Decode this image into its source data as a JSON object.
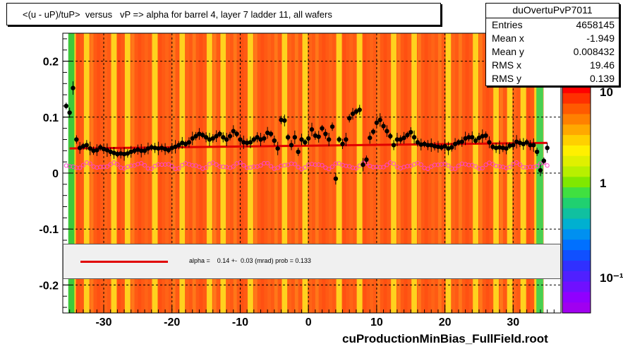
{
  "title": "<(u - uP)/tuP>  versus   vP => alpha for barrel 4, layer 7 ladder 11, all wafers",
  "stats": {
    "name": "duOvertuPvP7011",
    "rows": [
      {
        "label": "Entries",
        "value": "4658145"
      },
      {
        "label": "Mean x",
        "value": "-1.949"
      },
      {
        "label": "Mean y",
        "value": "0.008432"
      },
      {
        "label": "RMS x",
        "value": "19.46"
      },
      {
        "label": "RMS y",
        "value": "0.139"
      }
    ]
  },
  "fit_text": "alpha =    0.14 +-  0.03 (mrad) prob = 0.133",
  "footer": "cuProductionMinBias_FullField.root",
  "colors": {
    "fit_line": "#e00000",
    "profile_markers": "#000000",
    "secondary_markers": "#ff44cc",
    "heatmap_main": "#ff5a14",
    "heatmap_stripes": "#ffd21e"
  },
  "chart_data": {
    "type": "heatmap",
    "title": "<(u - uP)/tuP>  versus   vP => alpha for barrel 4, layer 7 ladder 11, all wafers",
    "xlim": [
      -36,
      37
    ],
    "ylim": [
      -0.25,
      0.25
    ],
    "x_ticks": [
      -30,
      -20,
      -10,
      0,
      10,
      20,
      30
    ],
    "x_tick_labels": [
      "-30",
      "-20",
      "-10",
      "0",
      "10",
      "20",
      "30"
    ],
    "y_ticks": [
      -0.2,
      -0.1,
      0,
      0.1,
      0.2
    ],
    "y_tick_labels": [
      "-0.2",
      "-0.1",
      "0",
      "0.1",
      "0.2"
    ],
    "z_scale": "log",
    "z_tick_labels": [
      "10",
      "1",
      "10⁻¹"
    ],
    "grid": true,
    "heat_x_range": [
      -35,
      34
    ],
    "stripe_positions": [
      -34.5,
      -32.5,
      -28.5,
      -26.5,
      -22.5,
      -18.5,
      -14.5,
      -12.5,
      -8.5,
      -3.5,
      -0.5,
      4.5,
      7.5,
      12.5,
      15.5,
      20.5,
      24.5,
      27.5,
      29.5,
      31.5,
      33.5
    ],
    "fit": {
      "x": [
        -35,
        35
      ],
      "y": [
        0.044,
        0.054
      ]
    },
    "profile": {
      "name": "profile",
      "points": [
        [
          -35.5,
          0.12
        ],
        [
          -35.0,
          0.108
        ],
        [
          -34.5,
          0.152
        ],
        [
          -34.0,
          0.06
        ],
        [
          -33.5,
          0.045
        ],
        [
          -33.0,
          0.048
        ],
        [
          -32.5,
          0.05
        ],
        [
          -32.0,
          0.044
        ],
        [
          -31.5,
          0.04
        ],
        [
          -31.0,
          0.041
        ],
        [
          -30.5,
          0.046
        ],
        [
          -30.0,
          0.043
        ],
        [
          -29.5,
          0.041
        ],
        [
          -29.0,
          0.038
        ],
        [
          -28.5,
          0.036
        ],
        [
          -28.0,
          0.034
        ],
        [
          -27.5,
          0.035
        ],
        [
          -27.0,
          0.034
        ],
        [
          -26.5,
          0.035
        ],
        [
          -26.0,
          0.038
        ],
        [
          -25.5,
          0.04
        ],
        [
          -25.0,
          0.042
        ],
        [
          -24.5,
          0.04
        ],
        [
          -24.0,
          0.04
        ],
        [
          -23.5,
          0.044
        ],
        [
          -23.0,
          0.046
        ],
        [
          -22.5,
          0.045
        ],
        [
          -22.0,
          0.044
        ],
        [
          -21.5,
          0.045
        ],
        [
          -21.0,
          0.043
        ],
        [
          -20.5,
          0.041
        ],
        [
          -20.0,
          0.045
        ],
        [
          -19.5,
          0.047
        ],
        [
          -19.0,
          0.05
        ],
        [
          -18.5,
          0.054
        ],
        [
          -18.0,
          0.052
        ],
        [
          -17.5,
          0.055
        ],
        [
          -17.0,
          0.062
        ],
        [
          -16.5,
          0.066
        ],
        [
          -16.0,
          0.07
        ],
        [
          -15.5,
          0.068
        ],
        [
          -15.0,
          0.064
        ],
        [
          -14.5,
          0.06
        ],
        [
          -14.0,
          0.062
        ],
        [
          -13.5,
          0.066
        ],
        [
          -13.0,
          0.07
        ],
        [
          -12.5,
          0.064
        ],
        [
          -12.0,
          0.06
        ],
        [
          -11.5,
          0.066
        ],
        [
          -11.0,
          0.075
        ],
        [
          -10.5,
          0.07
        ],
        [
          -10.0,
          0.06
        ],
        [
          -9.5,
          0.055
        ],
        [
          -9.0,
          0.054
        ],
        [
          -8.5,
          0.055
        ],
        [
          -8.0,
          0.06
        ],
        [
          -7.5,
          0.064
        ],
        [
          -7.0,
          0.06
        ],
        [
          -6.5,
          0.062
        ],
        [
          -6.0,
          0.072
        ],
        [
          -5.5,
          0.07
        ],
        [
          -5.0,
          0.058
        ],
        [
          -4.5,
          0.044
        ],
        [
          -4.0,
          0.095
        ],
        [
          -3.5,
          0.094
        ],
        [
          -3.0,
          0.064
        ],
        [
          -2.5,
          0.05
        ],
        [
          -2.0,
          0.064
        ],
        [
          -1.5,
          0.038
        ],
        [
          -1.0,
          0.06
        ],
        [
          -0.5,
          0.055
        ],
        [
          0.0,
          0.062
        ],
        [
          0.5,
          0.078
        ],
        [
          1.0,
          0.067
        ],
        [
          1.5,
          0.065
        ],
        [
          2.0,
          0.08
        ],
        [
          2.5,
          0.07
        ],
        [
          3.0,
          0.06
        ],
        [
          3.5,
          0.083
        ],
        [
          4.0,
          -0.01
        ],
        [
          4.5,
          0.06
        ],
        [
          5.0,
          0.052
        ],
        [
          5.5,
          0.06
        ],
        [
          6.0,
          0.098
        ],
        [
          6.5,
          0.106
        ],
        [
          7.0,
          0.11
        ],
        [
          7.5,
          0.113
        ],
        [
          8.0,
          0.015
        ],
        [
          8.5,
          0.024
        ],
        [
          9.0,
          0.063
        ],
        [
          9.5,
          0.074
        ],
        [
          10.0,
          0.09
        ],
        [
          10.5,
          0.095
        ],
        [
          11.0,
          0.084
        ],
        [
          11.5,
          0.075
        ],
        [
          12.0,
          0.066
        ],
        [
          12.5,
          0.05
        ],
        [
          13.0,
          0.06
        ],
        [
          13.5,
          0.06
        ],
        [
          14.0,
          0.063
        ],
        [
          14.5,
          0.068
        ],
        [
          15.0,
          0.073
        ],
        [
          15.5,
          0.064
        ],
        [
          16.0,
          0.055
        ],
        [
          16.5,
          0.051
        ],
        [
          17.0,
          0.052
        ],
        [
          17.5,
          0.05
        ],
        [
          18.0,
          0.05
        ],
        [
          18.5,
          0.048
        ],
        [
          19.0,
          0.047
        ],
        [
          19.5,
          0.046
        ],
        [
          20.0,
          0.048
        ],
        [
          20.5,
          0.044
        ],
        [
          21.0,
          0.046
        ],
        [
          21.5,
          0.052
        ],
        [
          22.0,
          0.055
        ],
        [
          22.5,
          0.056
        ],
        [
          23.0,
          0.062
        ],
        [
          23.5,
          0.064
        ],
        [
          24.0,
          0.064
        ],
        [
          24.5,
          0.058
        ],
        [
          25.0,
          0.063
        ],
        [
          25.5,
          0.066
        ],
        [
          26.0,
          0.067
        ],
        [
          26.5,
          0.055
        ],
        [
          27.0,
          0.047
        ],
        [
          27.5,
          0.045
        ],
        [
          28.0,
          0.046
        ],
        [
          28.5,
          0.045
        ],
        [
          29.0,
          0.044
        ],
        [
          29.5,
          0.049
        ],
        [
          30.0,
          0.05
        ],
        [
          30.5,
          0.056
        ],
        [
          31.0,
          0.054
        ],
        [
          31.5,
          0.052
        ],
        [
          32.0,
          0.055
        ],
        [
          32.5,
          0.05
        ],
        [
          33.0,
          0.05
        ],
        [
          33.5,
          0.038
        ],
        [
          34.0,
          0.005
        ],
        [
          34.5,
          0.022
        ],
        [
          35.0,
          0.045
        ]
      ]
    },
    "secondary": {
      "name": "secondary",
      "y_base": 0.013,
      "x_range": [
        -35.5,
        35.0
      ],
      "step": 0.5
    }
  }
}
